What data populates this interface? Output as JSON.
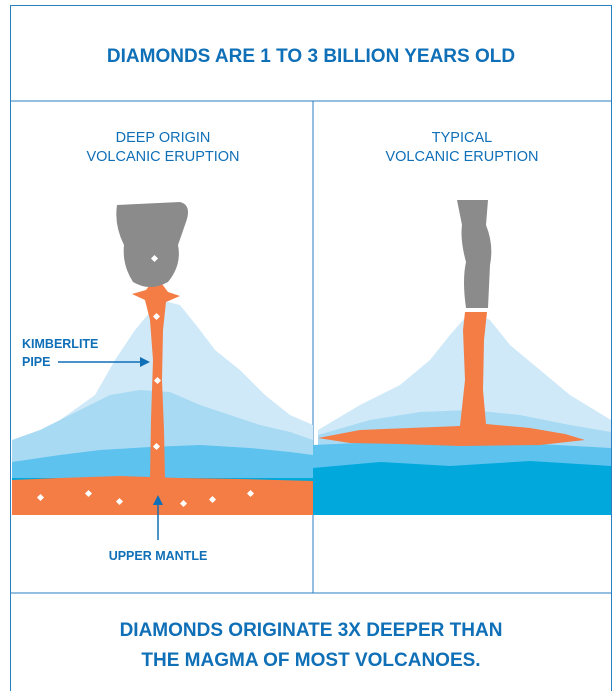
{
  "title": "DIAMONDS ARE 1 TO 3 BILLION YEARS OLD",
  "panels": [
    {
      "heading": [
        "DEEP ORIGIN",
        "VOLCANIC ERUPTION"
      ]
    },
    {
      "heading": [
        "TYPICAL",
        "VOLCANIC ERUPTION"
      ]
    }
  ],
  "labels": {
    "pipe": [
      "KIMBERLITE",
      "PIPE"
    ],
    "mantle": "UPPER MANTLE"
  },
  "footer": [
    "DIAMONDS ORIGINATE 3X DEEPER THAN",
    "THE MAGMA OF MOST VOLCANOES."
  ]
}
